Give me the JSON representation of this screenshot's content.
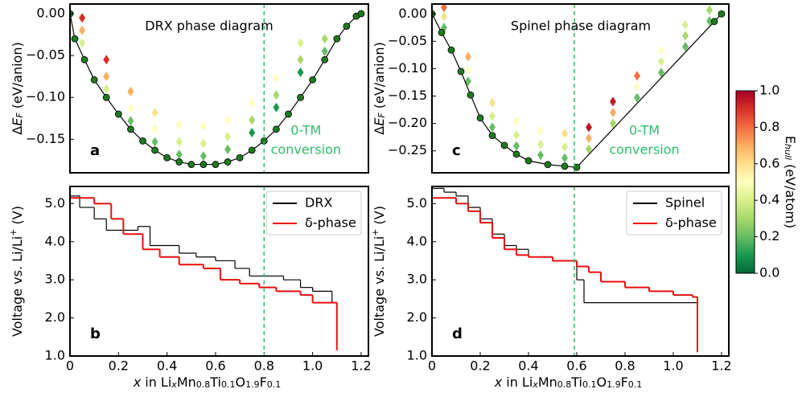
{
  "chart_data": [
    {
      "type": "scatter",
      "label": "a",
      "title": "DRX phase diagram",
      "xlim": [
        0,
        1.23
      ],
      "ylim": [
        -0.19,
        0.0115
      ],
      "yticks": [
        {
          "value": 0,
          "label": "0.00"
        },
        {
          "value": -0.05,
          "label": "−0.05"
        },
        {
          "value": -0.1,
          "label": "−0.10"
        },
        {
          "value": -0.15,
          "label": "−0.15"
        }
      ],
      "ylabel": [
        {
          "text": "Δ"
        },
        {
          "text": "E",
          "style": "italic"
        },
        {
          "text": "F",
          "style": "sub-italic"
        },
        {
          "text": " (eV/anion)"
        }
      ],
      "vline": 0.8,
      "vline_color": "#2dbb6a",
      "vline_text": [
        "0-TM",
        "conversion"
      ],
      "hull": {
        "color": "#000000",
        "marker_color": "#1f7a1f",
        "x": [
          0,
          0.02,
          0.06,
          0.1,
          0.15,
          0.2,
          0.25,
          0.3,
          0.35,
          0.4,
          0.45,
          0.5,
          0.55,
          0.6,
          0.65,
          0.7,
          0.75,
          0.8,
          0.85,
          0.9,
          0.95,
          1.0,
          1.05,
          1.1,
          1.14,
          1.18,
          1.2
        ],
        "y": [
          0,
          -0.03,
          -0.055,
          -0.079,
          -0.1,
          -0.12,
          -0.138,
          -0.152,
          -0.163,
          -0.172,
          -0.177,
          -0.18,
          -0.18,
          -0.18,
          -0.177,
          -0.172,
          -0.163,
          -0.152,
          -0.138,
          -0.12,
          -0.1,
          -0.079,
          -0.055,
          -0.03,
          -0.015,
          -0.003,
          0
        ]
      },
      "structures": {
        "x": [
          0.05,
          0.05,
          0.05,
          0.15,
          0.15,
          0.15,
          0.25,
          0.25,
          0.25,
          0.35,
          0.35,
          0.35,
          0.45,
          0.45,
          0.45,
          0.55,
          0.55,
          0.55,
          0.65,
          0.65,
          0.65,
          0.75,
          0.75,
          0.75,
          0.85,
          0.85,
          0.85,
          0.95,
          0.95,
          0.95,
          1.05,
          1.05
        ],
        "y": [
          -0.035,
          -0.02,
          -0.005,
          -0.09,
          -0.075,
          -0.055,
          -0.128,
          -0.113,
          -0.093,
          -0.153,
          -0.138,
          -0.118,
          -0.168,
          -0.153,
          -0.133,
          -0.17,
          -0.155,
          -0.135,
          -0.162,
          -0.147,
          -0.127,
          -0.142,
          -0.127,
          -0.107,
          -0.112,
          -0.097,
          -0.077,
          -0.07,
          -0.055,
          -0.035,
          -0.045,
          -0.03
        ],
        "e": [
          0.4,
          0.7,
          0.9,
          0.4,
          0.7,
          0.9,
          0.2,
          0.5,
          0.7,
          0.2,
          0.5,
          0.6,
          0.2,
          0.4,
          0.5,
          0.2,
          0.4,
          0.5,
          0.2,
          0.4,
          0.5,
          0.1,
          0.3,
          0.5,
          0.1,
          0.3,
          0.5,
          0.1,
          0.3,
          0.4,
          0.2,
          0.3
        ]
      }
    },
    {
      "type": "line",
      "label": "b",
      "step": "post",
      "xlim": [
        0,
        1.23
      ],
      "ylim": [
        1.0,
        5.45
      ],
      "xticks": [
        0,
        0.2,
        0.4,
        0.6,
        0.8,
        {
          "value": 1,
          "label": "1.0"
        },
        1.2
      ],
      "yticks": [
        {
          "value": 1,
          "label": "1.0"
        },
        {
          "value": 2,
          "label": "2.0"
        },
        {
          "value": 3,
          "label": "3.0"
        },
        {
          "value": 4,
          "label": "4.0"
        },
        {
          "value": 5,
          "label": "5.0"
        }
      ],
      "ylabel": [
        {
          "text": "Voltage vs. Li/Li"
        },
        {
          "text": "+",
          "style": "sup"
        },
        {
          "text": " (V)"
        }
      ],
      "xlabel": [
        {
          "text": "x",
          "style": "italic"
        },
        {
          "text": " in Li"
        },
        {
          "text": "x",
          "style": "sub-italic"
        },
        {
          "text": "Mn"
        },
        {
          "text": "0.8",
          "style": "sub"
        },
        {
          "text": "Ti"
        },
        {
          "text": "0.1",
          "style": "sub"
        },
        {
          "text": "O"
        },
        {
          "text": "1.9",
          "style": "sub"
        },
        {
          "text": "F"
        },
        {
          "text": "0.1",
          "style": "sub"
        }
      ],
      "vline": 0.8,
      "vline_color": "#2dbb6a",
      "legend": "upper right",
      "series": [
        {
          "name": "DRX",
          "color": "#000000",
          "x": [
            0,
            0.04,
            0.1,
            0.15,
            0.28,
            0.33,
            0.45,
            0.52,
            0.6,
            0.68,
            0.74,
            0.88,
            0.95,
            1.0,
            1.08,
            1.1
          ],
          "values": [
            5.2,
            4.9,
            4.6,
            4.3,
            4.4,
            3.9,
            3.7,
            3.6,
            3.5,
            3.3,
            3.1,
            3.0,
            2.8,
            2.7,
            2.4,
            1.3
          ]
        },
        {
          "name": "δ-phase",
          "color": "#e8110f",
          "x": [
            0,
            0.1,
            0.17,
            0.22,
            0.3,
            0.37,
            0.45,
            0.55,
            0.62,
            0.7,
            0.78,
            0.85,
            0.95,
            1.0,
            1.1
          ],
          "values": [
            5.15,
            5.0,
            4.6,
            4.2,
            3.8,
            3.6,
            3.4,
            3.3,
            3.0,
            2.9,
            2.8,
            2.7,
            2.6,
            2.4,
            1.15
          ]
        }
      ]
    },
    {
      "type": "scatter",
      "label": "c",
      "title": "Spinel phase diagram",
      "xlim": [
        0,
        1.23
      ],
      "ylim": [
        -0.29,
        0.018
      ],
      "yticks": [
        {
          "value": 0,
          "label": "0.00"
        },
        {
          "value": -0.05,
          "label": "−0.05"
        },
        {
          "value": -0.1,
          "label": "−0.10"
        },
        {
          "value": -0.15,
          "label": "−0.15"
        },
        {
          "value": -0.2,
          "label": "−0.20"
        },
        {
          "value": -0.25,
          "label": "−0.25"
        }
      ],
      "ylabel": [
        {
          "text": "Δ"
        },
        {
          "text": "E",
          "style": "italic"
        },
        {
          "text": "F",
          "style": "sub-italic"
        },
        {
          "text": " (eV/anion)"
        }
      ],
      "vline": 0.59,
      "vline_color": "#2dbb6a",
      "vline_text": [
        "0-TM",
        "conversion"
      ],
      "hull": {
        "color": "#000000",
        "marker_color": "#1f7a1f",
        "x": [
          0,
          0.04,
          0.08,
          0.12,
          0.16,
          0.2,
          0.25,
          0.3,
          0.35,
          0.4,
          0.48,
          0.55,
          0.6,
          1.17,
          1.2
        ],
        "y": [
          0,
          -0.034,
          -0.066,
          -0.105,
          -0.148,
          -0.19,
          -0.222,
          -0.24,
          -0.256,
          -0.268,
          -0.275,
          -0.278,
          -0.28,
          -0.014,
          0
        ]
      },
      "structures": {
        "x": [
          0.05,
          0.05,
          0.05,
          0.15,
          0.15,
          0.15,
          0.25,
          0.25,
          0.25,
          0.35,
          0.35,
          0.35,
          0.45,
          0.45,
          0.45,
          0.55,
          0.55,
          0.55,
          0.65,
          0.65,
          0.65,
          0.75,
          0.75,
          0.75,
          0.85,
          0.85,
          0.85,
          0.95,
          0.95,
          0.95,
          1.05,
          1.05,
          1.05,
          1.15,
          1.15
        ],
        "y": [
          -0.025,
          -0.005,
          0.012,
          -0.123,
          -0.103,
          -0.078,
          -0.207,
          -0.187,
          -0.162,
          -0.241,
          -0.221,
          -0.196,
          -0.258,
          -0.238,
          -0.213,
          -0.263,
          -0.243,
          -0.218,
          -0.247,
          -0.227,
          -0.207,
          -0.2,
          -0.18,
          -0.16,
          -0.153,
          -0.133,
          -0.113,
          -0.107,
          -0.087,
          -0.067,
          -0.06,
          -0.04,
          -0.02,
          -0.013,
          0.007
        ],
        "e": [
          0.2,
          0.6,
          0.8,
          0.2,
          0.5,
          0.7,
          0.2,
          0.4,
          0.6,
          0.2,
          0.4,
          0.5,
          0.2,
          0.4,
          0.5,
          0.2,
          0.4,
          0.6,
          0.3,
          0.7,
          0.95,
          0.3,
          0.7,
          0.95,
          0.2,
          0.5,
          0.8,
          0.2,
          0.4,
          0.5,
          0.2,
          0.3,
          0.4,
          0.2,
          0.3
        ]
      }
    },
    {
      "type": "line",
      "label": "d",
      "step": "post",
      "xlim": [
        0,
        1.23
      ],
      "ylim": [
        1.0,
        5.45
      ],
      "xticks": [
        0,
        0.2,
        0.4,
        0.6,
        0.8,
        {
          "value": 1,
          "label": "1.0"
        },
        1.2
      ],
      "yticks": [
        {
          "value": 1,
          "label": "1.0"
        },
        {
          "value": 2,
          "label": "2.0"
        },
        {
          "value": 3,
          "label": "3.0"
        },
        {
          "value": 4,
          "label": "4.0"
        },
        {
          "value": 5,
          "label": "5.0"
        }
      ],
      "ylabel": [
        {
          "text": "Voltage vs. Li/Li"
        },
        {
          "text": "+",
          "style": "sup"
        },
        {
          "text": " (V)"
        }
      ],
      "xlabel": [
        {
          "text": "x",
          "style": "italic"
        },
        {
          "text": " in Li"
        },
        {
          "text": "x",
          "style": "sub-italic"
        },
        {
          "text": "Mn"
        },
        {
          "text": "0.8",
          "style": "sub"
        },
        {
          "text": "Ti"
        },
        {
          "text": "0.1",
          "style": "sub"
        },
        {
          "text": "O"
        },
        {
          "text": "1.9",
          "style": "sub"
        },
        {
          "text": "F"
        },
        {
          "text": "0.1",
          "style": "sub"
        }
      ],
      "vline": 0.59,
      "vline_color": "#2dbb6a",
      "legend": "upper right",
      "series": [
        {
          "name": "Spinel",
          "color": "#000000",
          "x": [
            0,
            0.05,
            0.1,
            0.15,
            0.2,
            0.25,
            0.3,
            0.35,
            0.4,
            0.5,
            0.6,
            0.63,
            1.1
          ],
          "values": [
            5.4,
            5.3,
            5.2,
            4.9,
            4.6,
            4.2,
            3.9,
            3.8,
            3.6,
            3.5,
            3.0,
            2.4,
            2.4
          ]
        },
        {
          "name": "δ-phase",
          "color": "#e8110f",
          "x": [
            0,
            0.1,
            0.15,
            0.2,
            0.25,
            0.3,
            0.35,
            0.4,
            0.5,
            0.6,
            0.65,
            0.7,
            0.8,
            0.9,
            1.0,
            1.08,
            1.1
          ],
          "values": [
            5.15,
            5.0,
            4.8,
            4.5,
            4.1,
            3.8,
            3.65,
            3.6,
            3.5,
            3.35,
            3.2,
            2.95,
            2.8,
            2.7,
            2.6,
            2.55,
            1.1
          ]
        }
      ]
    }
  ],
  "colorbar": {
    "colormap": "RdYlGn",
    "lim": [
      0,
      1
    ],
    "label": [
      {
        "text": "E"
      },
      {
        "text": "hull",
        "style": "sub-italic"
      },
      {
        "text": " (eV/atom)"
      }
    ],
    "ticks": [
      {
        "value": 0,
        "label": "0.0"
      },
      {
        "value": 0.2,
        "label": "0.2"
      },
      {
        "value": 0.4,
        "label": "0.4"
      },
      {
        "value": 0.6,
        "label": "0.6"
      },
      {
        "value": 0.8,
        "label": "0.8"
      },
      {
        "value": 1,
        "label": "1.0"
      }
    ]
  }
}
